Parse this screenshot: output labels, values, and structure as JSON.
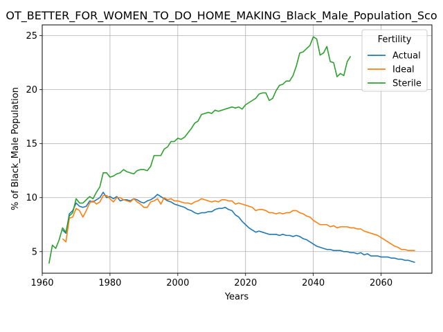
{
  "chart_data": {
    "type": "line",
    "title": "OT_BETTER_FOR_WOMEN_TO_DO_HOME_MAKING_Black_Male_Population_Sco",
    "xlabel": "Years",
    "ylabel": "% of Black_Male Population",
    "xlim": [
      1960,
      2075
    ],
    "ylim": [
      3,
      26
    ],
    "xticks": [
      1960,
      1980,
      2000,
      2020,
      2040,
      2060
    ],
    "yticks": [
      5,
      10,
      15,
      20,
      25
    ],
    "grid": true,
    "legend": {
      "title": "Fertility",
      "placement": "top-right"
    },
    "series": [
      {
        "name": "Actual",
        "color": "#1f77b4",
        "points": [
          [
            1966,
            7.0
          ],
          [
            1967,
            6.7
          ],
          [
            1968,
            8.5
          ],
          [
            1969,
            8.8
          ],
          [
            1970,
            9.5
          ],
          [
            1971,
            9.2
          ],
          [
            1972,
            9.1
          ],
          [
            1973,
            9.2
          ],
          [
            1974,
            9.7
          ],
          [
            1975,
            9.6
          ],
          [
            1976,
            9.8
          ],
          [
            1977,
            10.0
          ],
          [
            1978,
            10.5
          ],
          [
            1979,
            10.0
          ],
          [
            1980,
            10.1
          ],
          [
            1981,
            9.9
          ],
          [
            1982,
            10.1
          ],
          [
            1983,
            9.7
          ],
          [
            1984,
            9.8
          ],
          [
            1985,
            9.8
          ],
          [
            1986,
            9.7
          ],
          [
            1987,
            9.9
          ],
          [
            1988,
            9.8
          ],
          [
            1989,
            9.6
          ],
          [
            1990,
            9.5
          ],
          [
            1991,
            9.7
          ],
          [
            1992,
            9.8
          ],
          [
            1993,
            10.0
          ],
          [
            1994,
            10.3
          ],
          [
            1995,
            10.1
          ],
          [
            1996,
            9.9
          ],
          [
            1997,
            9.7
          ],
          [
            1998,
            9.6
          ],
          [
            1999,
            9.4
          ],
          [
            2000,
            9.3
          ],
          [
            2001,
            9.2
          ],
          [
            2002,
            9.1
          ],
          [
            2003,
            8.9
          ],
          [
            2004,
            8.8
          ],
          [
            2005,
            8.6
          ],
          [
            2006,
            8.5
          ],
          [
            2007,
            8.6
          ],
          [
            2008,
            8.6
          ],
          [
            2009,
            8.7
          ],
          [
            2010,
            8.7
          ],
          [
            2011,
            8.9
          ],
          [
            2012,
            9.0
          ],
          [
            2013,
            9.0
          ],
          [
            2014,
            9.1
          ],
          [
            2015,
            8.9
          ],
          [
            2016,
            8.8
          ],
          [
            2017,
            8.4
          ],
          [
            2018,
            8.2
          ],
          [
            2019,
            7.8
          ],
          [
            2020,
            7.5
          ],
          [
            2021,
            7.2
          ],
          [
            2022,
            7.0
          ],
          [
            2023,
            6.8
          ],
          [
            2024,
            6.9
          ],
          [
            2025,
            6.8
          ],
          [
            2026,
            6.7
          ],
          [
            2027,
            6.6
          ],
          [
            2028,
            6.6
          ],
          [
            2029,
            6.6
          ],
          [
            2030,
            6.5
          ],
          [
            2031,
            6.6
          ],
          [
            2032,
            6.5
          ],
          [
            2033,
            6.5
          ],
          [
            2034,
            6.4
          ],
          [
            2035,
            6.5
          ],
          [
            2036,
            6.4
          ],
          [
            2037,
            6.2
          ],
          [
            2038,
            6.1
          ],
          [
            2039,
            5.9
          ],
          [
            2040,
            5.7
          ],
          [
            2041,
            5.5
          ],
          [
            2042,
            5.4
          ],
          [
            2043,
            5.3
          ],
          [
            2044,
            5.2
          ],
          [
            2045,
            5.2
          ],
          [
            2046,
            5.1
          ],
          [
            2047,
            5.1
          ],
          [
            2048,
            5.1
          ],
          [
            2049,
            5.0
          ],
          [
            2050,
            5.0
          ],
          [
            2051,
            4.9
          ],
          [
            2052,
            4.9
          ],
          [
            2053,
            4.8
          ],
          [
            2054,
            4.9
          ],
          [
            2055,
            4.7
          ],
          [
            2056,
            4.8
          ],
          [
            2057,
            4.6
          ],
          [
            2058,
            4.6
          ],
          [
            2059,
            4.6
          ],
          [
            2060,
            4.5
          ],
          [
            2061,
            4.5
          ],
          [
            2062,
            4.5
          ],
          [
            2063,
            4.4
          ],
          [
            2064,
            4.4
          ],
          [
            2065,
            4.3
          ],
          [
            2066,
            4.3
          ],
          [
            2067,
            4.2
          ],
          [
            2068,
            4.2
          ],
          [
            2069,
            4.1
          ],
          [
            2070,
            4.0
          ]
        ]
      },
      {
        "name": "Ideal",
        "color": "#ff7f0e",
        "points": [
          [
            1966,
            6.2
          ],
          [
            1967,
            5.9
          ],
          [
            1968,
            8.1
          ],
          [
            1969,
            8.2
          ],
          [
            1970,
            9.0
          ],
          [
            1971,
            8.8
          ],
          [
            1972,
            8.2
          ],
          [
            1973,
            8.8
          ],
          [
            1974,
            9.5
          ],
          [
            1975,
            9.7
          ],
          [
            1976,
            9.4
          ],
          [
            1977,
            9.6
          ],
          [
            1978,
            10.2
          ],
          [
            1979,
            10.2
          ],
          [
            1980,
            9.9
          ],
          [
            1981,
            9.6
          ],
          [
            1982,
            10.0
          ],
          [
            1983,
            10.0
          ],
          [
            1984,
            9.8
          ],
          [
            1985,
            9.7
          ],
          [
            1986,
            9.6
          ],
          [
            1987,
            9.9
          ],
          [
            1988,
            9.6
          ],
          [
            1989,
            9.4
          ],
          [
            1990,
            9.1
          ],
          [
            1991,
            9.1
          ],
          [
            1992,
            9.6
          ],
          [
            1993,
            9.7
          ],
          [
            1994,
            9.9
          ],
          [
            1995,
            9.4
          ],
          [
            1996,
            10.0
          ],
          [
            1997,
            9.8
          ],
          [
            1998,
            9.9
          ],
          [
            1999,
            9.7
          ],
          [
            2000,
            9.7
          ],
          [
            2001,
            9.6
          ],
          [
            2002,
            9.5
          ],
          [
            2003,
            9.5
          ],
          [
            2004,
            9.4
          ],
          [
            2005,
            9.6
          ],
          [
            2006,
            9.7
          ],
          [
            2007,
            9.9
          ],
          [
            2008,
            9.8
          ],
          [
            2009,
            9.7
          ],
          [
            2010,
            9.6
          ],
          [
            2011,
            9.7
          ],
          [
            2012,
            9.6
          ],
          [
            2013,
            9.8
          ],
          [
            2014,
            9.8
          ],
          [
            2015,
            9.7
          ],
          [
            2016,
            9.7
          ],
          [
            2017,
            9.4
          ],
          [
            2018,
            9.5
          ],
          [
            2019,
            9.4
          ],
          [
            2020,
            9.3
          ],
          [
            2021,
            9.2
          ],
          [
            2022,
            9.1
          ],
          [
            2023,
            8.8
          ],
          [
            2024,
            8.9
          ],
          [
            2025,
            8.9
          ],
          [
            2026,
            8.8
          ],
          [
            2027,
            8.6
          ],
          [
            2028,
            8.6
          ],
          [
            2029,
            8.5
          ],
          [
            2030,
            8.6
          ],
          [
            2031,
            8.5
          ],
          [
            2032,
            8.6
          ],
          [
            2033,
            8.6
          ],
          [
            2034,
            8.8
          ],
          [
            2035,
            8.8
          ],
          [
            2036,
            8.6
          ],
          [
            2037,
            8.5
          ],
          [
            2038,
            8.3
          ],
          [
            2039,
            8.2
          ],
          [
            2040,
            7.9
          ],
          [
            2041,
            7.7
          ],
          [
            2042,
            7.5
          ],
          [
            2043,
            7.5
          ],
          [
            2044,
            7.5
          ],
          [
            2045,
            7.3
          ],
          [
            2046,
            7.4
          ],
          [
            2047,
            7.2
          ],
          [
            2048,
            7.3
          ],
          [
            2049,
            7.3
          ],
          [
            2050,
            7.3
          ],
          [
            2051,
            7.2
          ],
          [
            2052,
            7.2
          ],
          [
            2053,
            7.1
          ],
          [
            2054,
            7.1
          ],
          [
            2055,
            6.9
          ],
          [
            2056,
            6.8
          ],
          [
            2057,
            6.7
          ],
          [
            2058,
            6.6
          ],
          [
            2059,
            6.5
          ],
          [
            2060,
            6.3
          ],
          [
            2061,
            6.1
          ],
          [
            2062,
            5.9
          ],
          [
            2063,
            5.7
          ],
          [
            2064,
            5.5
          ],
          [
            2065,
            5.4
          ],
          [
            2066,
            5.2
          ],
          [
            2067,
            5.2
          ],
          [
            2068,
            5.1
          ],
          [
            2069,
            5.1
          ],
          [
            2070,
            5.1
          ]
        ]
      },
      {
        "name": "Sterile",
        "color": "#2ca02c",
        "points": [
          [
            1962,
            3.9
          ],
          [
            1963,
            5.6
          ],
          [
            1964,
            5.3
          ],
          [
            1965,
            6.1
          ],
          [
            1966,
            7.2
          ],
          [
            1967,
            6.8
          ],
          [
            1968,
            8.3
          ],
          [
            1969,
            8.6
          ],
          [
            1970,
            9.9
          ],
          [
            1971,
            9.5
          ],
          [
            1972,
            9.5
          ],
          [
            1973,
            9.8
          ],
          [
            1974,
            10.1
          ],
          [
            1975,
            9.9
          ],
          [
            1976,
            10.5
          ],
          [
            1977,
            11.0
          ],
          [
            1978,
            12.3
          ],
          [
            1979,
            12.3
          ],
          [
            1980,
            11.9
          ],
          [
            1981,
            12.0
          ],
          [
            1982,
            12.2
          ],
          [
            1983,
            12.3
          ],
          [
            1984,
            12.6
          ],
          [
            1985,
            12.4
          ],
          [
            1986,
            12.3
          ],
          [
            1987,
            12.2
          ],
          [
            1988,
            12.5
          ],
          [
            1989,
            12.6
          ],
          [
            1990,
            12.6
          ],
          [
            1991,
            12.5
          ],
          [
            1992,
            12.9
          ],
          [
            1993,
            13.9
          ],
          [
            1994,
            13.9
          ],
          [
            1995,
            13.9
          ],
          [
            1996,
            14.5
          ],
          [
            1997,
            14.7
          ],
          [
            1998,
            15.2
          ],
          [
            1999,
            15.2
          ],
          [
            2000,
            15.5
          ],
          [
            2001,
            15.4
          ],
          [
            2002,
            15.6
          ],
          [
            2003,
            16.0
          ],
          [
            2004,
            16.4
          ],
          [
            2005,
            16.9
          ],
          [
            2006,
            17.1
          ],
          [
            2007,
            17.7
          ],
          [
            2008,
            17.8
          ],
          [
            2009,
            17.9
          ],
          [
            2010,
            17.8
          ],
          [
            2011,
            18.1
          ],
          [
            2012,
            18.0
          ],
          [
            2013,
            18.1
          ],
          [
            2014,
            18.2
          ],
          [
            2015,
            18.3
          ],
          [
            2016,
            18.4
          ],
          [
            2017,
            18.3
          ],
          [
            2018,
            18.4
          ],
          [
            2019,
            18.2
          ],
          [
            2020,
            18.6
          ],
          [
            2021,
            18.8
          ],
          [
            2022,
            19.0
          ],
          [
            2023,
            19.2
          ],
          [
            2024,
            19.6
          ],
          [
            2025,
            19.7
          ],
          [
            2026,
            19.7
          ],
          [
            2027,
            19.0
          ],
          [
            2028,
            19.2
          ],
          [
            2029,
            19.9
          ],
          [
            2030,
            20.4
          ],
          [
            2031,
            20.5
          ],
          [
            2032,
            20.8
          ],
          [
            2033,
            20.8
          ],
          [
            2034,
            21.3
          ],
          [
            2035,
            22.2
          ],
          [
            2036,
            23.4
          ],
          [
            2037,
            23.5
          ],
          [
            2038,
            23.8
          ],
          [
            2039,
            24.1
          ],
          [
            2040,
            24.9
          ],
          [
            2041,
            24.7
          ],
          [
            2042,
            23.2
          ],
          [
            2043,
            23.4
          ],
          [
            2044,
            24.0
          ],
          [
            2045,
            22.6
          ],
          [
            2046,
            22.5
          ],
          [
            2047,
            21.2
          ],
          [
            2048,
            21.5
          ],
          [
            2049,
            21.3
          ],
          [
            2050,
            22.6
          ],
          [
            2051,
            23.1
          ]
        ]
      }
    ]
  }
}
